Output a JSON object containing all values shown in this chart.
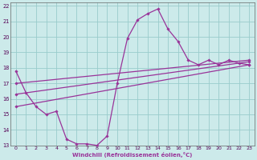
{
  "xlabel": "Windchill (Refroidissement éolien,°C)",
  "xlim": [
    -0.5,
    23.5
  ],
  "ylim": [
    13,
    22.2
  ],
  "yticks": [
    13,
    14,
    15,
    16,
    17,
    18,
    19,
    20,
    21,
    22
  ],
  "xticks": [
    0,
    1,
    2,
    3,
    4,
    5,
    6,
    7,
    8,
    9,
    10,
    11,
    12,
    13,
    14,
    15,
    16,
    17,
    18,
    19,
    20,
    21,
    22,
    23
  ],
  "background_color": "#cceaea",
  "grid_color": "#99cccc",
  "line_color": "#993399",
  "main_line": {
    "x": [
      0,
      1,
      2,
      3,
      4,
      5,
      6,
      7,
      8,
      9,
      10,
      11,
      12,
      13,
      14,
      15,
      16,
      17,
      18,
      19,
      20,
      21,
      22,
      23
    ],
    "y": [
      17.8,
      16.4,
      15.5,
      15.0,
      15.2,
      13.4,
      13.1,
      13.1,
      13.0,
      13.6,
      17.0,
      19.9,
      21.1,
      21.5,
      21.8,
      20.5,
      19.7,
      18.5,
      18.2,
      18.5,
      18.2,
      18.5,
      18.3,
      18.2
    ]
  },
  "straight_lines": [
    {
      "x": [
        0,
        23
      ],
      "y": [
        15.5,
        18.2
      ]
    },
    {
      "x": [
        0,
        23
      ],
      "y": [
        16.3,
        18.4
      ]
    },
    {
      "x": [
        0,
        23
      ],
      "y": [
        17.0,
        18.5
      ]
    }
  ]
}
